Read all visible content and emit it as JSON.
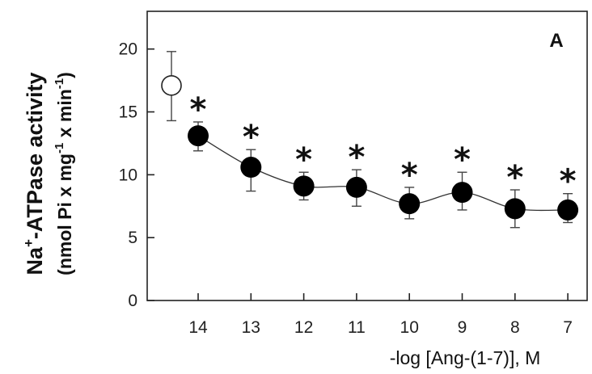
{
  "chart_data": {
    "type": "scatter",
    "panel_label": "A",
    "xlabel": "-log [Ang-(1-7)], M",
    "ylabel_line1": {
      "base": "Na",
      "sup": "+",
      "rest": "-ATPase activity"
    },
    "ylabel_line2": {
      "part1": "(nmol Pi x mg",
      "sup1": "-1",
      "part2": " x min",
      "sup2": "-1",
      "part3": ")"
    },
    "ylim": [
      0,
      23
    ],
    "yticks": [
      0,
      5,
      10,
      15,
      20
    ],
    "categories": [
      "14",
      "13",
      "12",
      "11",
      "10",
      "9",
      "8",
      "7"
    ],
    "control": {
      "value": 17.1,
      "err_upper": 19.8,
      "err_lower": 14.3,
      "marker": "open-circle"
    },
    "series": [
      {
        "values": [
          13.1,
          10.6,
          9.1,
          9.0,
          7.7,
          8.6,
          7.3,
          7.2
        ],
        "err_upper": [
          14.2,
          12.0,
          10.2,
          10.4,
          9.0,
          10.2,
          8.8,
          8.5
        ],
        "err_lower": [
          11.9,
          8.7,
          8.0,
          7.5,
          6.5,
          7.2,
          5.8,
          6.2
        ],
        "marker": "filled-circle",
        "significance": [
          "*",
          "*",
          "*",
          "*",
          "*",
          "*",
          "*",
          "*"
        ]
      }
    ],
    "legend": "none",
    "grid": false
  }
}
